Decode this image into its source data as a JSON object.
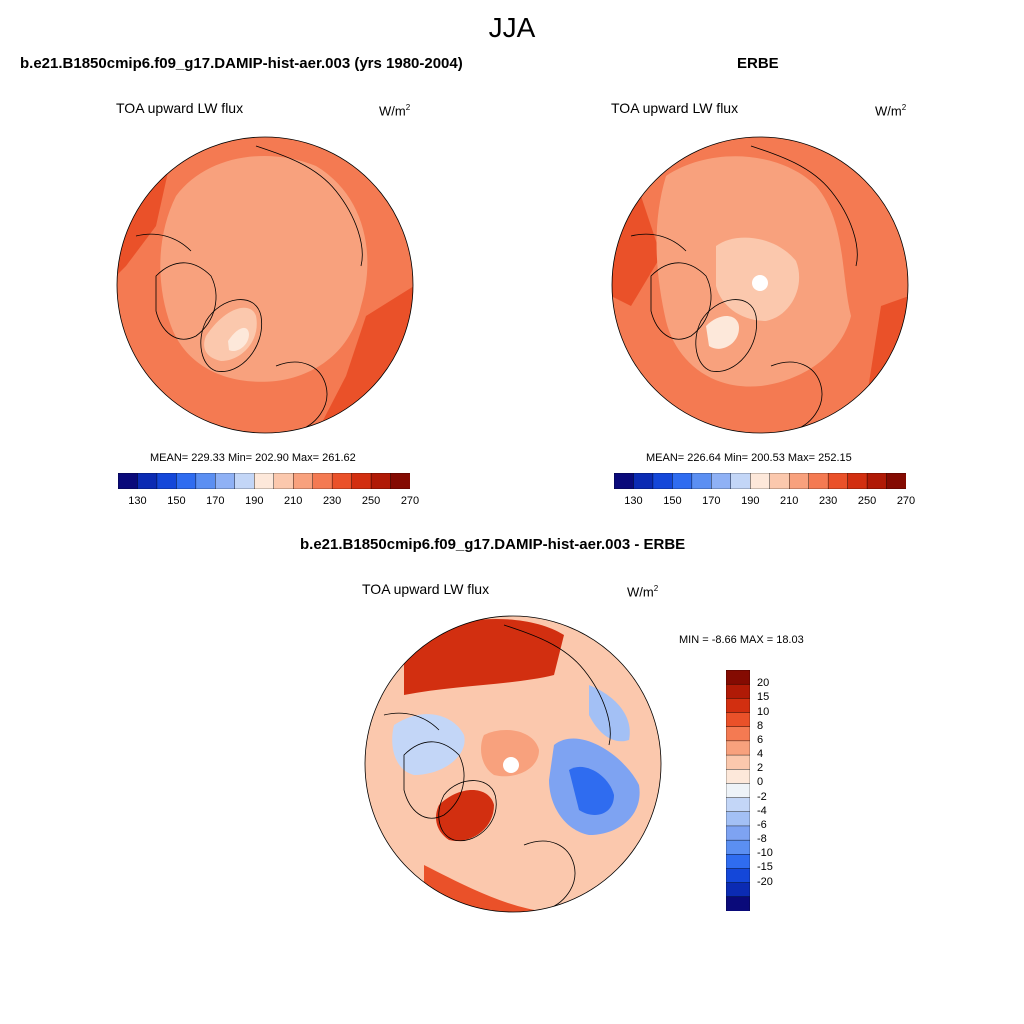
{
  "figure": {
    "title": "JJA"
  },
  "panels": [
    {
      "title": "b.e21.B1850cmip6.f09_g17.DAMIP-hist-aer.003 (yrs 1980-2004)",
      "variable": "TOA upward LW flux",
      "units_base": "W/m",
      "units_exp": "2",
      "mean_label": "MEAN=",
      "mean": "229.33",
      "min_label": "Min=",
      "min": "202.90",
      "max_label": "Max=",
      "max": "261.62",
      "stats_text": "MEAN= 229.33  Min= 202.90  Max= 261.62"
    },
    {
      "title": "ERBE",
      "variable": "TOA upward LW flux",
      "units_base": "W/m",
      "units_exp": "2",
      "stats_text": "MEAN= 226.64  Min= 200.53  Max= 252.15"
    },
    {
      "title": "b.e21.B1850cmip6.f09_g17.DAMIP-hist-aer.003 - ERBE",
      "variable": "TOA upward LW flux",
      "units_base": "W/m",
      "units_exp": "2",
      "stats_text": "MIN =  -8.66 MAX =  18.03"
    }
  ],
  "colorbars": {
    "absolute": {
      "colors": [
        "#0a0a7a",
        "#0b2bb3",
        "#1447d9",
        "#2f6cf0",
        "#5b8ff2",
        "#8fb1f5",
        "#c3d6f7",
        "#fde8da",
        "#fbc8ad",
        "#f8a17d",
        "#f47a52",
        "#ea5129",
        "#d22f10",
        "#b01a06",
        "#840b02"
      ],
      "tick_labels": [
        "130",
        "150",
        "170",
        "190",
        "210",
        "230",
        "250",
        "270"
      ]
    },
    "difference": {
      "colors_top_to_bottom": [
        "#840b02",
        "#b01a06",
        "#d22f10",
        "#ea5129",
        "#f47a52",
        "#f8a17d",
        "#fbc8ad",
        "#fde8da",
        "#eef3f8",
        "#c3d6f7",
        "#a3c0f5",
        "#7ea3f2",
        "#5b8ff2",
        "#2f6cf0",
        "#1447d9",
        "#0b2bb3",
        "#0a0a7a"
      ],
      "tick_labels": [
        "20",
        "15",
        "10",
        "8",
        "6",
        "4",
        "2",
        "0",
        "-2",
        "-4",
        "-6",
        "-8",
        "-10",
        "-15",
        "-20"
      ]
    }
  },
  "chart_data": [
    {
      "type": "heatmap",
      "title": "b.e21.B1850cmip6.f09_g17.DAMIP-hist-aer.003 (yrs 1980-2004)",
      "projection": "north polar stereographic",
      "variable": "TOA upward LW flux",
      "units": "W/m2",
      "mean": 229.33,
      "min": 202.9,
      "max": 261.62,
      "levels": [
        130,
        140,
        150,
        160,
        170,
        180,
        190,
        200,
        210,
        220,
        230,
        240,
        250,
        260,
        270
      ]
    },
    {
      "type": "heatmap",
      "title": "ERBE",
      "projection": "north polar stereographic",
      "variable": "TOA upward LW flux",
      "units": "W/m2",
      "mean": 226.64,
      "min": 200.53,
      "max": 252.15,
      "levels": [
        130,
        140,
        150,
        160,
        170,
        180,
        190,
        200,
        210,
        220,
        230,
        240,
        250,
        260,
        270
      ]
    },
    {
      "type": "heatmap",
      "title": "b.e21.B1850cmip6.f09_g17.DAMIP-hist-aer.003 - ERBE",
      "projection": "north polar stereographic",
      "variable": "TOA upward LW flux",
      "units": "W/m2",
      "min": -8.66,
      "max": 18.03,
      "levels": [
        -20,
        -15,
        -10,
        -8,
        -6,
        -4,
        -2,
        0,
        2,
        4,
        6,
        8,
        10,
        15,
        20
      ]
    }
  ]
}
